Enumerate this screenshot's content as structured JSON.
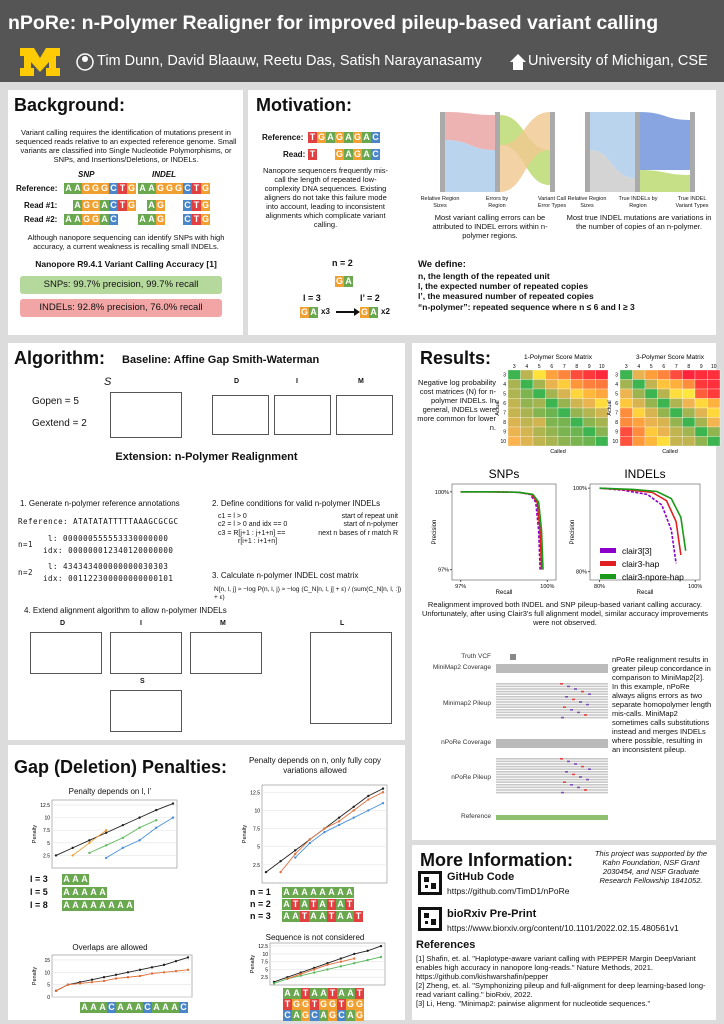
{
  "header": {
    "title": "nPoRe: n-Polymer Realigner for improved pileup-based variant calling",
    "authors": "Tim Dunn, David Blaauw, Reetu Das, Satish Narayanasamy",
    "affiliation": "University of Michigan, CSE"
  },
  "background": {
    "heading": "Background:",
    "intro": "Variant calling requires the identification of mutations present in sequenced reads relative to an expected reference genome. Small variants are classified into Single Nucleotide Polymorphisms, or SNPs, and Insertions/Deletions, or INDELs.",
    "col_snp": "SNP",
    "col_indel": "INDEL",
    "rows": [
      {
        "label": "Reference:",
        "snp": "AAGGGCTG",
        "indel": "AAGGGCTG"
      },
      {
        "label": "Read #1:",
        "snp": "AGGACTG",
        "indel_a": "AG",
        "indel_b": "CTG"
      },
      {
        "label": "Read #2:",
        "snp": "AAGGAC",
        "indel_a": "AAG",
        "indel_b": "CTG"
      }
    ],
    "weakness": "Although nanopore sequencing can identify SNPs with high accuracy, a current weakness is recalling small INDELs.",
    "accuracy_title": "Nanopore R9.4.1 Variant Calling Accuracy [1]",
    "snp_accuracy": "SNPs: 99.7% precision, 99.7% recall",
    "indel_accuracy": "INDELs: 92.8% precision, 76.0% recall"
  },
  "motivation": {
    "heading": "Motivation:",
    "ref_label": "Reference:",
    "ref_seq": "TGAGAGAC",
    "read_label": "Read:",
    "read_a": "T",
    "read_b": "GAGAC",
    "text": "Nanopore sequencers frequently mis-call the length of repeated low-complexity DNA sequences. Existing aligners do not take this failure mode into account, leading to inconsistent alignments which complicate variant calling.",
    "sankey1_axes": [
      "Relative Region Sizes",
      "Errors by Region",
      "Variant Call Error Types"
    ],
    "sankey2_axes": [
      "Relative Region Sizes",
      "True INDELs by Region",
      "True INDEL Variant Types"
    ],
    "caption1": "Most variant calling errors can be attributed to INDEL errors within n-polymer regions.",
    "caption2": "Most true INDEL mutations are variations in the number of copies of an n-polymer.",
    "n_label": "n = 2",
    "unit": "GA",
    "l_label": "l = 3",
    "lp_label": "l’ = 2",
    "x3": "x3",
    "x2": "x2",
    "define_title": "We define:",
    "defs": [
      "n, the length of the repeated unit",
      "l, the expected number of repeated copies",
      "l’, the measured number of repeated copies",
      "“n-polymer”: repeated sequence where n ≤ 6 and l ≥ 3"
    ]
  },
  "algorithm": {
    "heading": "Algorithm:",
    "baseline": "Baseline: Affine Gap Smith-Waterman",
    "g_open": "Gopen = 5",
    "g_extend": "Gextend = 2",
    "score_matrix": "S",
    "baseline_matrices": [
      "D",
      "I",
      "M"
    ],
    "extension": "Extension: n-Polymer Realignment",
    "steps": [
      "1.  Generate n-polymer reference annotations",
      "2.  Define conditions for valid n-polymer INDELs",
      "3.  Calculate n-polymer INDEL cost matrix",
      "4.  Extend alignment algorithm to allow n-polymer INDELs"
    ],
    "reference": "Reference: ATATATATTTTTAAAGCGCGC",
    "annotations": [
      {
        "n": "n=1",
        "l": "l:  000000555553330000000",
        "idx": "idx:  000000012340120000000"
      },
      {
        "n": "n=2",
        "l": "l:  434343400000000030303",
        "idx": "idx:  001122300000000000101"
      }
    ],
    "conditions": [
      [
        "c1 = l > 0",
        "start of repeat unit"
      ],
      [
        "c2 = l > 0 and idx == 0",
        "start of n-polymer"
      ],
      [
        "c3 = R[j+1 : j+1+n] ==",
        "next n bases of r match R"
      ],
      [
        "r[i+1 : i+1+n]",
        ""
      ]
    ],
    "formula": "N[n, l, j] ≈ −log P(n, l, j) ≈ −log (C_N[n, l, j] + ε) / (sum(C_N[n, l, :]) + ε)",
    "ext_matrices": [
      "D",
      "I",
      "M",
      "L",
      "S"
    ]
  },
  "gap_penalties": {
    "heading": "Gap (Deletion) Penalties:",
    "charts": [
      {
        "title": "Penalty depends on l, l’",
        "ylabel": "Penalty",
        "ylim": [
          0,
          13.5
        ],
        "yticks": [
          2.5,
          5.0,
          7.5,
          10.0,
          12.5
        ],
        "series": [
          {
            "color": "#222222",
            "values": [
              2.5,
              4,
              5.5,
              7,
              8.5,
              10,
              11.5,
              12.8
            ]
          },
          {
            "color": "#f0a030",
            "values": [
              null,
              2.5,
              5,
              7.5,
              null,
              null,
              null,
              null
            ]
          },
          {
            "color": "#5cb85c",
            "values": [
              null,
              null,
              3,
              4.5,
              6,
              8,
              9.5,
              null
            ]
          },
          {
            "color": "#4a90d9",
            "values": [
              null,
              null,
              null,
              2,
              4,
              5.5,
              8,
              10
            ]
          }
        ]
      },
      {
        "title": "Penalty depends on n, only fully copy variations allowed",
        "ylabel": "Penalty",
        "ylim": [
          0,
          13.5
        ],
        "yticks": [
          2.5,
          5.0,
          7.5,
          10.0,
          12.5
        ],
        "series": [
          {
            "color": "#222222",
            "values": [
              1.5,
              3,
              4.5,
              6,
              7.5,
              9,
              10.5,
              12,
              13
            ]
          },
          {
            "color": "#e0703a",
            "values": [
              null,
              1.5,
              4,
              6,
              7.5,
              8.5,
              10,
              11.5,
              12.5
            ]
          },
          {
            "color": "#4a90d9",
            "values": [
              null,
              null,
              3.5,
              5.5,
              7,
              8,
              9,
              10,
              11
            ]
          }
        ]
      },
      {
        "title": "Overlaps are allowed",
        "ylabel": "Penalty",
        "ylim": [
          0,
          17
        ],
        "yticks": [
          0,
          5,
          10,
          15
        ],
        "series": [
          {
            "color": "#222222",
            "values": [
              2.5,
              5,
              6,
              7,
              8,
              9,
              10,
              11,
              12,
              13,
              14.5,
              16
            ]
          },
          {
            "color": "#e0703a",
            "values": [
              2.5,
              5,
              5.5,
              6,
              6.5,
              7.5,
              8,
              8.5,
              9.5,
              10,
              10.5,
              11
            ]
          }
        ]
      },
      {
        "title": "Sequence is not considered",
        "ylabel": "Penalty",
        "ylim": [
          0,
          13.5
        ],
        "yticks": [
          2.5,
          5.0,
          7.5,
          10.0,
          12.5
        ],
        "series": [
          {
            "color": "#222222",
            "values": [
              1,
              2.5,
              4,
              5.5,
              7,
              8.5,
              10,
              11,
              12.5
            ]
          },
          {
            "color": "#5cb85c",
            "values": [
              0.5,
              2,
              3,
              4,
              5,
              6,
              7,
              8,
              9
            ]
          },
          {
            "color": "#e0703a",
            "values": [
              null,
              2,
              3.5,
              5,
              6.5,
              7.5,
              8.5,
              null,
              null
            ]
          }
        ]
      }
    ],
    "l_rows": [
      {
        "label": "l = 3",
        "seq": "AAA"
      },
      {
        "label": "l = 5",
        "seq": "AAAAA"
      },
      {
        "label": "l = 8",
        "seq": "AAAAAAAA"
      }
    ],
    "n_rows": [
      {
        "label": "n = 1",
        "seq": "AAAAAAAA"
      },
      {
        "label": "n = 2",
        "seq": "ATATATAT"
      },
      {
        "label": "n = 3",
        "seq": "AATAATAAT"
      }
    ],
    "overlap_seq": "AAACAAACAAAC",
    "seq_rows": [
      "AATAATAAT",
      "TGGTGGTGG",
      "CAGCAGCAG"
    ]
  },
  "results": {
    "heading": "Results:",
    "matrix_text": "Negative log probability cost matrices (N) for n-polymer INDELs. In general, INDELs were more common for lower n.",
    "matrices": [
      {
        "title": "1-Polymer Score Matrix",
        "xlabel": "Called",
        "ylabel": "Actual",
        "ticks": [
          3,
          4,
          5,
          6,
          7,
          8,
          9,
          10
        ],
        "values": [
          [
            0.0,
            4.6,
            7.1,
            9.4,
            10.4,
            12.4,
            13.1,
            13.6
          ],
          [
            3.9,
            0.0,
            3.8,
            6.2,
            7.9,
            9.8,
            10.6,
            10.8
          ],
          [
            4.1,
            2.3,
            0.0,
            3.7,
            5.6,
            7.6,
            8.6,
            9.2
          ],
          [
            4.8,
            3.1,
            3.7,
            0.0,
            3.2,
            5.3,
            6.3,
            7.4
          ],
          [
            4.9,
            3.9,
            2.5,
            1.7,
            0.0,
            3.2,
            4.3,
            5.4
          ],
          [
            5.7,
            4.7,
            5.3,
            2.4,
            2.1,
            0.0,
            2.8,
            3.8
          ],
          [
            6.3,
            5.4,
            4.1,
            3.2,
            2.2,
            1.7,
            0.0,
            2.7
          ],
          [
            6.9,
            5.8,
            4.7,
            3.9,
            2.9,
            2.2,
            1.7,
            0.0
          ]
        ]
      },
      {
        "title": "3-Polymer Score Matrix",
        "xlabel": "Called",
        "ylabel": "Actual",
        "ticks": [
          3,
          4,
          5,
          6,
          7,
          8,
          9,
          10
        ],
        "values": [
          [
            0.0,
            6.2,
            9.5,
            10.4,
            12.4,
            13.8,
            13.5,
            13.4
          ],
          [
            3.7,
            0.0,
            4.8,
            8.2,
            8.9,
            10.1,
            13.1,
            13.4
          ],
          [
            6.4,
            3.4,
            0.0,
            4.4,
            7.3,
            7.0,
            11.8,
            13.0
          ],
          [
            8.1,
            5.6,
            3.2,
            0.0,
            4.1,
            6.5,
            7.5,
            8.8
          ],
          [
            10.1,
            7.7,
            5.6,
            3.2,
            0.0,
            3.7,
            5.9,
            7.5
          ],
          [
            10.2,
            9.4,
            6.2,
            5.6,
            3.2,
            0.0,
            3.8,
            6.6
          ],
          [
            12.4,
            10.2,
            8.0,
            6.2,
            4.7,
            3.6,
            0.0,
            3.0
          ],
          [
            12.2,
            9.7,
            8.6,
            7.3,
            4.9,
            4.7,
            3.0,
            0.0
          ]
        ]
      }
    ],
    "legend": [
      {
        "name": "clair3[3]",
        "color": "#8b00c9"
      },
      {
        "name": "clair3-hap",
        "color": "#e02020"
      },
      {
        "name": "clair3-npore-hap",
        "color": "#1a9a1a"
      }
    ],
    "pr_charts": [
      {
        "title": "SNPs",
        "xlabel": "Recall",
        "ylabel": "Precision",
        "xlim": [
          96.7,
          100.3
        ],
        "ylim": [
          96.6,
          100.3
        ],
        "xticks": [
          {
            "value": 97,
            "label": "97%"
          },
          {
            "value": 100,
            "label": "100%"
          }
        ],
        "yticks": [
          {
            "value": 97,
            "label": "97%"
          },
          {
            "value": 100,
            "label": "100%"
          }
        ],
        "curves": [
          {
            "x": [
              97,
              98,
              99,
              99.4,
              99.6,
              99.7,
              99.75
            ],
            "values": [
              100,
              100,
              99.98,
              99.9,
              99.6,
              98.5,
              97
            ]
          },
          {
            "x": [
              97,
              98,
              99,
              99.45,
              99.65,
              99.75,
              99.8
            ],
            "values": [
              100,
              100,
              99.98,
              99.9,
              99.6,
              98.5,
              97
            ]
          },
          {
            "x": [
              97,
              98,
              99,
              99.5,
              99.7,
              99.8,
              99.85
            ],
            "values": [
              100,
              100,
              99.98,
              99.9,
              99.6,
              98.5,
              97
            ]
          }
        ]
      },
      {
        "title": "INDELs",
        "xlabel": "Recall",
        "ylabel": "Precision",
        "xlim": [
          78,
          101
        ],
        "ylim": [
          78,
          101
        ],
        "xticks": [
          {
            "value": 80,
            "label": "80%"
          },
          {
            "value": 100,
            "label": "100%"
          }
        ],
        "yticks": [
          {
            "value": 80,
            "label": "80%"
          },
          {
            "value": 100,
            "label": "100%"
          }
        ],
        "curves": [
          {
            "x": [
              80,
              85,
              90,
              93,
              95,
              96
            ],
            "values": [
              100,
              99.5,
              98.5,
              96,
              90,
              82
            ]
          },
          {
            "x": [
              80,
              86,
              91,
              94,
              96,
              97
            ],
            "values": [
              100,
              99.6,
              99,
              97,
              92,
              84
            ]
          },
          {
            "x": [
              80,
              87,
              92,
              95,
              97,
              98
            ],
            "values": [
              100,
              99.7,
              99.2,
              97.5,
              93,
              85
            ]
          }
        ]
      }
    ],
    "pr_text": "Realignment improved both INDEL and SNP pileup-based variant calling accuracy. Unfortunately, after using Clair3's full alignment model, similar accuracy improvements were not observed.",
    "tracks": [
      "Truth VCF",
      "MiniMap2 Coverage",
      "Minimap2 Pileup",
      "nPoRe Coverage",
      "nPoRe Pileup",
      "Reference"
    ],
    "pileup_text": "nPoRe realignment results in greater pileup concordance in comparison to MiniMap2[2]. In this example, nPoRe always aligns errors as two separate homopolymer length mis-calls. MiniMap2 sometimes calls substitutions instead and merges INDELs where possible, resulting in an inconsistent pileup."
  },
  "more_info": {
    "heading": "More Information:",
    "funding": "This project was supported by the Kahn Foundation, NSF Grant 2030454, and NSF Graduate Research Fellowship 1841052.",
    "github": "GitHub Code",
    "github_url": "https://github.com/TimD1/nPoRe",
    "biorxiv": "bioRxiv Pre-Print",
    "biorxiv_url": "https://www.biorxiv.org/content/10.1101/2022.02.15.480561v1",
    "refs_heading": "References",
    "refs": [
      "[1] Shafin, et. al. \"Haplotype-aware variant calling with PEPPER Margin DeepVariant enables high accuracy in nanopore long-reads.\" Nature Methods, 2021. https://github.com/kishwarshafin/pepper",
      "[2] Zheng, et. al. \"Symphonizing pileup and full-alignment for deep learning-based long-read variant calling.\" bioRxiv, 2022.",
      "[3] Li, Heng. \"Minimap2: pairwise alignment for nucleotide sequences.\""
    ]
  }
}
